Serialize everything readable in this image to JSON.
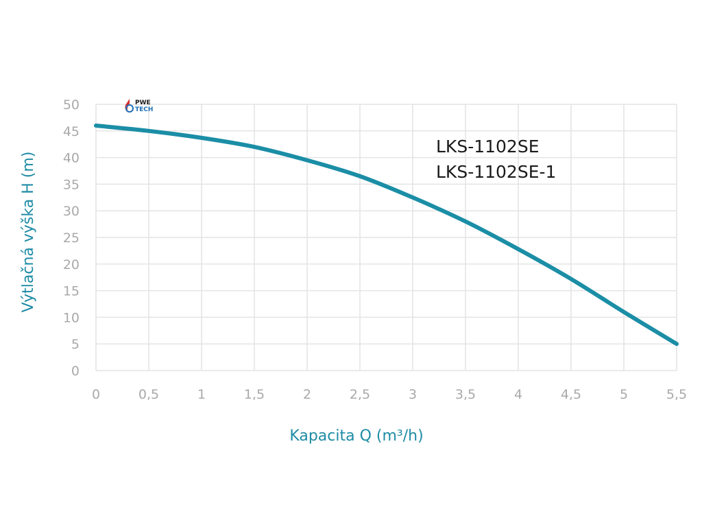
{
  "logo": {
    "line1": "PWE",
    "line2": "TECH"
  },
  "chart_data": {
    "type": "line",
    "title": "",
    "xlabel": "Kapacita Q (m³/h)",
    "ylabel": "Výtlačná výška H (m)",
    "xlim": [
      0,
      5.5
    ],
    "ylim": [
      0,
      50
    ],
    "x_ticks": [
      "0",
      "0,5",
      "1",
      "1,5",
      "2",
      "2,5",
      "3",
      "3,5",
      "4",
      "4,5",
      "5",
      "5,5"
    ],
    "y_ticks": [
      "0",
      "5",
      "10",
      "15",
      "20",
      "25",
      "30",
      "35",
      "40",
      "45",
      "50"
    ],
    "grid": true,
    "annotations": [
      "LKS-1102SE",
      "LKS-1102SE-1"
    ],
    "colors": {
      "line": "#1b8ea6",
      "axis_label": "#1e8ca5",
      "tick": "#a9a9a9",
      "grid": "#e4e4e4",
      "logo_red": "#d22d2d",
      "logo_blue": "#1f6fb5"
    },
    "series": [
      {
        "x": [
          0,
          0.5,
          1,
          1.5,
          2,
          2.5,
          3,
          3.5,
          4,
          4.5,
          5,
          5.5
        ],
        "y": [
          46,
          45,
          43.7,
          42,
          39.5,
          36.5,
          32.5,
          28,
          22.8,
          17.2,
          11,
          5
        ]
      }
    ]
  }
}
